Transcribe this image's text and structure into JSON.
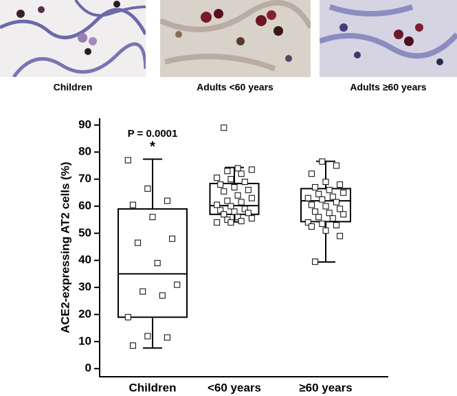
{
  "panels": [
    {
      "caption": "Children"
    },
    {
      "caption": "Adults <60 years"
    },
    {
      "caption": "Adults ≥60 years"
    }
  ],
  "chart_data": {
    "type": "box",
    "y_label": "ACE2-expressing AT2 cells (%)",
    "annotation": "P = 0.0001",
    "significance": "*",
    "categories": [
      "Children",
      "<60 years",
      "≥60 years"
    ],
    "boxes": [
      {
        "min": 7.6,
        "q1": 19,
        "median": 35,
        "q3": 59,
        "max": 77.4
      },
      {
        "min": 54.2,
        "q1": 57,
        "median": 60.2,
        "q3": 68.4,
        "max": 74.3
      },
      {
        "min": 39.4,
        "q1": 54.3,
        "median": 62,
        "q3": 66.5,
        "max": 76.6
      }
    ],
    "points": [
      [
        77,
        66.5,
        62,
        60.5,
        56,
        48,
        46.5,
        39,
        31,
        28.5,
        27,
        19,
        12,
        11.5,
        8.5
      ],
      [
        89,
        74,
        73.5,
        73,
        72,
        70.5,
        70,
        69,
        68,
        67,
        66,
        65.5,
        64,
        63,
        62,
        61.5,
        60.5,
        60,
        59,
        58.5,
        58,
        57.5,
        57,
        56,
        55.5,
        55,
        54.5,
        54,
        54
      ],
      [
        76.5,
        75,
        72,
        69,
        68,
        67,
        66,
        65,
        64.5,
        63.5,
        63,
        62.5,
        61.5,
        60.5,
        60,
        59,
        58,
        57.5,
        57,
        56,
        55.5,
        54,
        53.5,
        53,
        52.5,
        51,
        49,
        39.5
      ]
    ],
    "ylim": [
      -3,
      92.5
    ],
    "yticks": [
      0,
      10,
      20,
      30,
      40,
      50,
      60,
      70,
      80,
      90
    ]
  }
}
